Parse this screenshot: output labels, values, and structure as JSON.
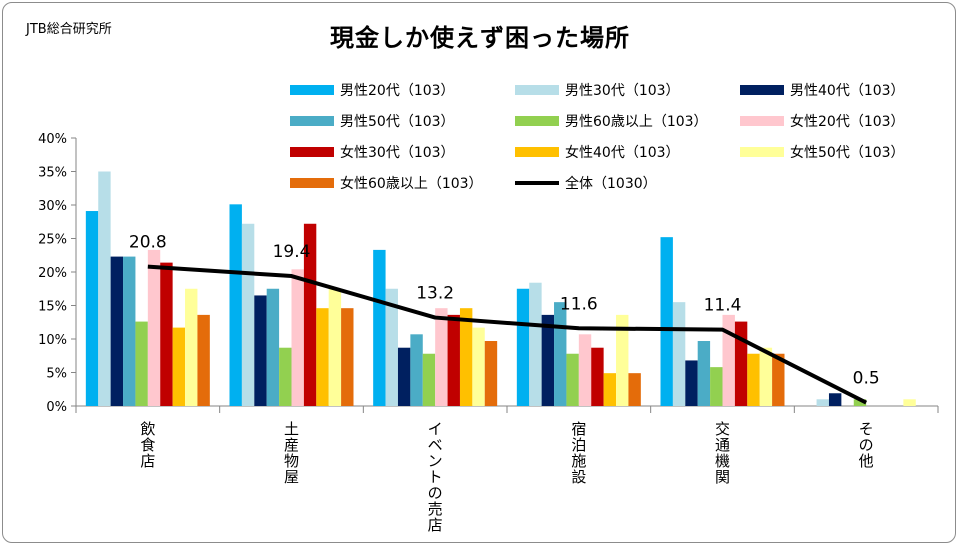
{
  "source_label": "JTB総合研究所",
  "chart_data": {
    "type": "bar",
    "title": "現金しか使えず困った場所",
    "ylim": [
      0,
      40
    ],
    "yticks": [
      "0%",
      "5%",
      "10%",
      "15%",
      "20%",
      "25%",
      "30%",
      "35%",
      "40%"
    ],
    "ytick_values": [
      0,
      5,
      10,
      15,
      20,
      25,
      30,
      35,
      40
    ],
    "legend_position": "top-right",
    "categories": [
      "飲食店",
      "土産物屋",
      "イベントの売店",
      "宿泊施設",
      "交通機関",
      "その他"
    ],
    "series": [
      {
        "name": "男性20代（103）",
        "color": "#00b0f0",
        "values": [
          29.1,
          30.1,
          23.3,
          17.5,
          25.2,
          0
        ]
      },
      {
        "name": "男性30代（103）",
        "color": "#b7dee8",
        "values": [
          35.0,
          27.2,
          17.5,
          18.4,
          15.5,
          1.0
        ]
      },
      {
        "name": "男性40代（103）",
        "color": "#002060",
        "values": [
          22.3,
          16.5,
          8.7,
          13.6,
          6.8,
          1.9
        ]
      },
      {
        "name": "男性50代（103）",
        "color": "#4bacc6",
        "values": [
          22.3,
          17.5,
          10.7,
          15.5,
          9.7,
          0
        ]
      },
      {
        "name": "男性60歳以上（103）",
        "color": "#92d050",
        "values": [
          12.6,
          8.7,
          7.8,
          7.8,
          5.8,
          1.0
        ]
      },
      {
        "name": "女性20代（103）",
        "color": "#ffc7ce",
        "values": [
          23.3,
          20.4,
          14.6,
          10.7,
          13.6,
          0
        ]
      },
      {
        "name": "女性30代（103）",
        "color": "#c00000",
        "values": [
          21.4,
          27.2,
          13.6,
          8.7,
          12.6,
          0
        ]
      },
      {
        "name": "女性40代（103）",
        "color": "#ffc000",
        "values": [
          11.7,
          14.6,
          14.6,
          4.9,
          7.8,
          0
        ]
      },
      {
        "name": "女性50代（103）",
        "color": "#ffff99",
        "values": [
          17.5,
          17.5,
          11.7,
          13.6,
          8.7,
          1.0
        ]
      },
      {
        "name": "女性60歳以上（103）",
        "color": "#e46c0a",
        "values": [
          13.6,
          14.6,
          9.7,
          4.9,
          7.8,
          0
        ]
      }
    ],
    "line": {
      "name": "全体（1030）",
      "color": "#000000",
      "values": [
        20.8,
        19.4,
        13.2,
        11.6,
        11.4,
        0.5
      ],
      "labels": [
        "20.8",
        "19.4",
        "13.2",
        "11.6",
        "11.4",
        "0.5"
      ]
    }
  }
}
